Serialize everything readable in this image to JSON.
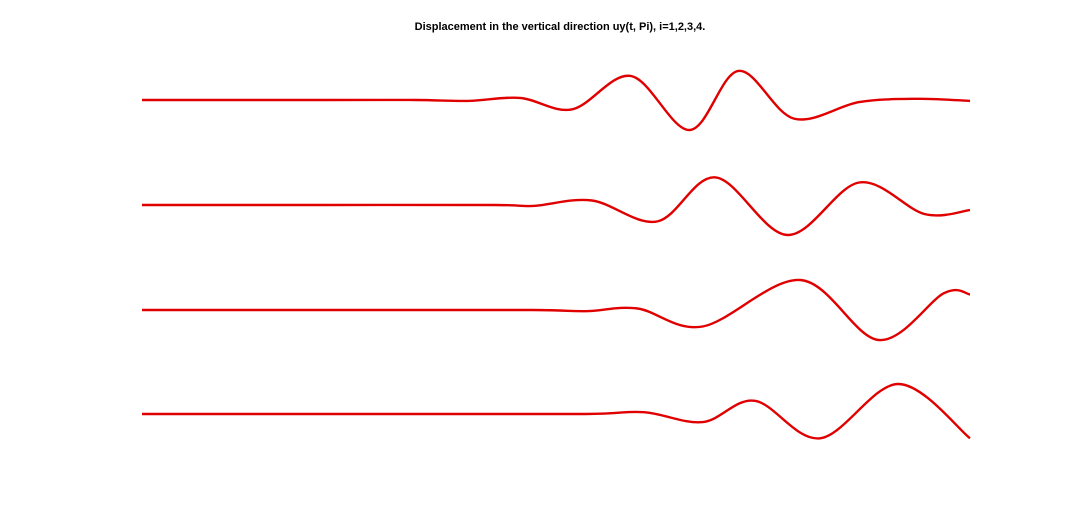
{
  "chart_data": {
    "type": "line",
    "title": "Displacement in the vertical direction uy(t, Pi), i=1,2,3,4.",
    "xlabel": "",
    "ylabel": "",
    "grid": false,
    "axes_visible": false,
    "line_color": "#e00000",
    "series": [
      {
        "wave": [
          [
            0.0,
            0.0
          ],
          [
            0.28,
            0.0
          ],
          [
            0.42,
            0.0
          ],
          [
            0.5,
            -0.03
          ],
          [
            0.58,
            0.07
          ],
          [
            0.66,
            -0.31
          ],
          [
            0.75,
            0.8
          ],
          [
            0.84,
            -1.0
          ],
          [
            0.915,
            0.97
          ],
          [
            1.0,
            -0.62
          ],
          [
            1.1,
            -0.07
          ],
          [
            1.19,
            0.04
          ],
          [
            1.27,
            -0.03
          ]
        ]
      },
      {
        "wave": [
          [
            0.0,
            0.0
          ],
          [
            0.28,
            0.0
          ],
          [
            0.54,
            0.0
          ],
          [
            0.6,
            -0.03
          ],
          [
            0.69,
            0.15
          ],
          [
            0.79,
            -0.55
          ],
          [
            0.88,
            0.92
          ],
          [
            0.99,
            -1.0
          ],
          [
            1.1,
            0.75
          ],
          [
            1.2,
            -0.3
          ],
          [
            1.27,
            -0.17
          ]
        ]
      },
      {
        "wave": [
          [
            0.0,
            0.0
          ],
          [
            0.36,
            0.0
          ],
          [
            0.6,
            0.0
          ],
          [
            0.68,
            -0.04
          ],
          [
            0.76,
            0.05
          ],
          [
            0.86,
            -0.55
          ],
          [
            1.01,
            1.0
          ],
          [
            1.13,
            -1.0
          ],
          [
            1.23,
            0.56
          ],
          [
            1.27,
            0.52
          ]
        ]
      },
      {
        "wave": [
          [
            0.0,
            0.0
          ],
          [
            0.4,
            0.0
          ],
          [
            0.68,
            0.0
          ],
          [
            0.77,
            0.06
          ],
          [
            0.86,
            -0.27
          ],
          [
            0.94,
            0.44
          ],
          [
            1.04,
            -0.81
          ],
          [
            1.16,
            1.0
          ],
          [
            1.27,
            -0.81
          ]
        ]
      }
    ]
  }
}
